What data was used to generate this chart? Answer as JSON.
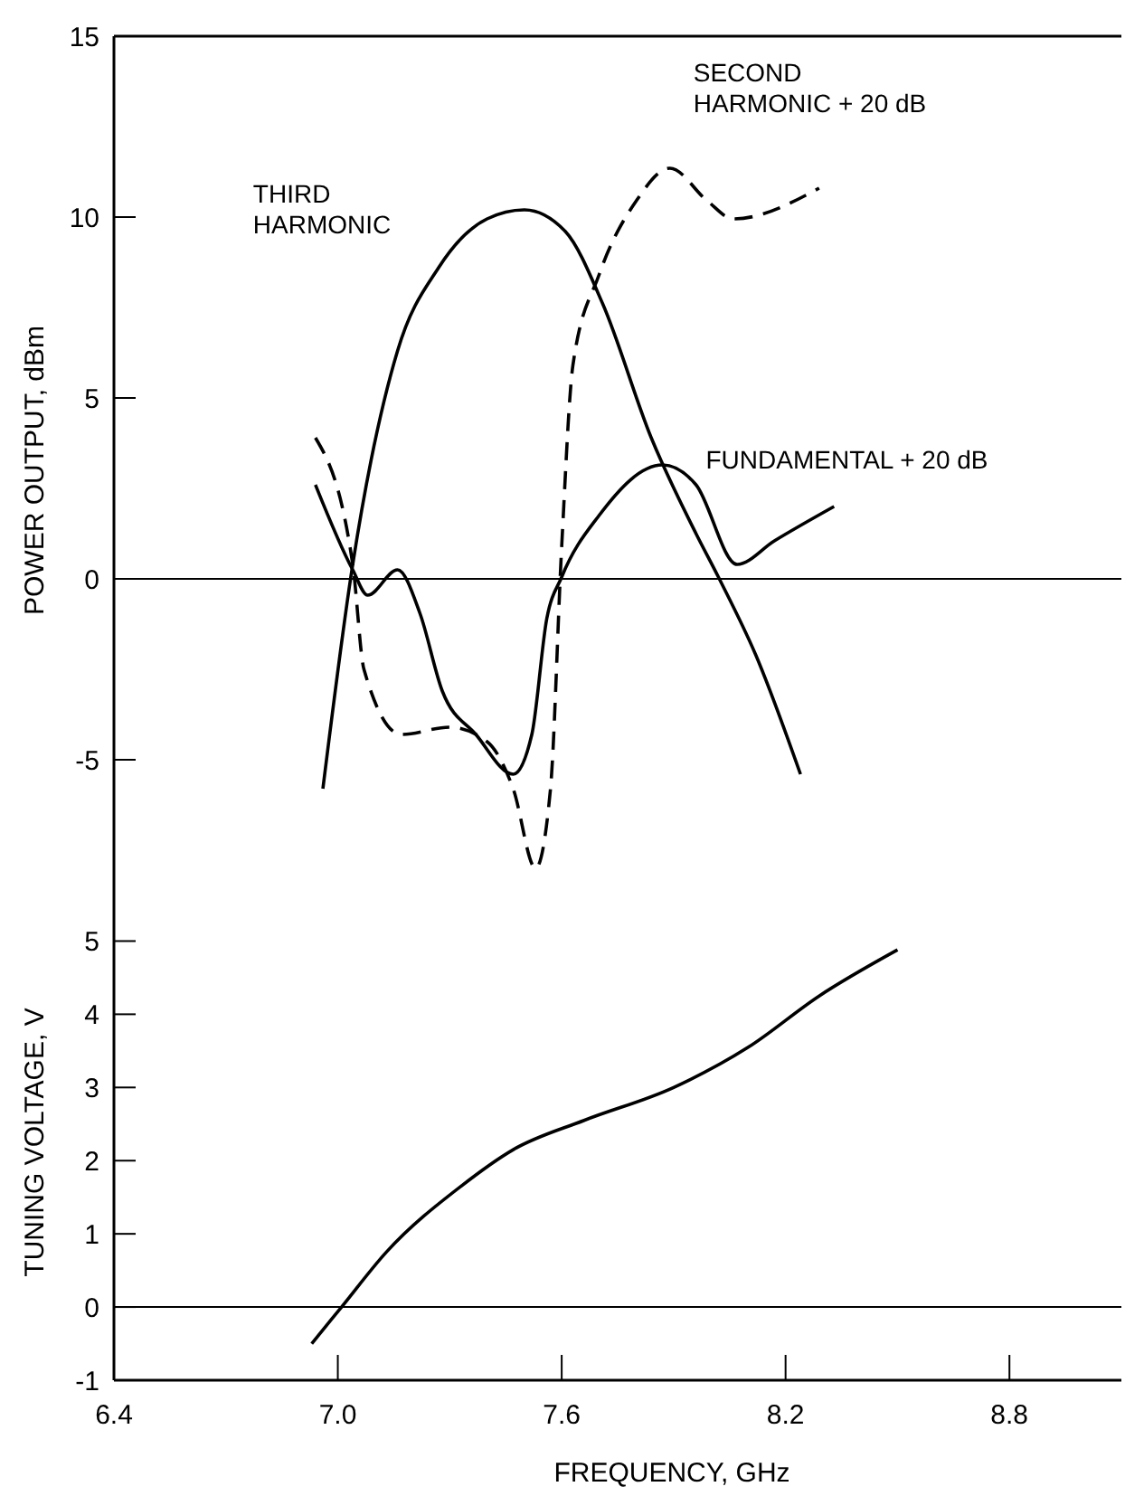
{
  "chart_data": [
    {
      "type": "line",
      "ylabel": "POWER OUTPUT, dBm",
      "xlim": [
        6.4,
        9.1
      ],
      "ylim": [
        -9,
        15
      ],
      "yticks": [
        -5,
        0,
        5,
        10,
        15
      ],
      "tick_labels": "y",
      "ref_lines": [
        {
          "axis": "y",
          "value": 0
        }
      ],
      "series": [
        {
          "name": "THIRD\nHARMONIC",
          "color": "#000000",
          "line_style": "solid",
          "x": [
            6.96,
            7.04,
            7.16,
            7.27,
            7.4,
            7.5,
            7.61,
            7.71,
            7.84,
            7.96,
            8.02,
            8.12,
            8.24
          ],
          "values": [
            -5.8,
            0.4,
            6.3,
            8.6,
            9.95,
            10.2,
            9.6,
            7.6,
            3.9,
            1.25,
            0.05,
            -2.1,
            -5.4
          ]
        },
        {
          "name": "SECOND\nHARMONIC + 20 dB",
          "color": "#000000",
          "line_style": "dashed",
          "x": [
            6.94,
            7.04,
            7.07,
            7.17,
            7.3,
            7.4,
            7.47,
            7.53,
            7.57,
            7.6,
            7.63,
            7.7,
            7.8,
            7.89,
            7.99,
            8.06,
            8.29
          ],
          "values": [
            3.9,
            0.4,
            -2.5,
            -4.3,
            -4.1,
            -4.5,
            -5.8,
            -8,
            -5.8,
            0.9,
            5.9,
            8.4,
            10.45,
            11.35,
            10.45,
            9.95,
            10.8
          ]
        },
        {
          "name": "FUNDAMENTAL + 20 dB",
          "color": "#000000",
          "line_style": "solid",
          "x": [
            6.94,
            7.04,
            7.08,
            7.16,
            7.22,
            7.28,
            7.37,
            7.47,
            7.52,
            7.56,
            7.6,
            7.7,
            7.87,
            7.96,
            8.07,
            8.17,
            8.33
          ],
          "values": [
            2.6,
            0.25,
            -0.45,
            0.25,
            -0.95,
            -3.1,
            -4.3,
            -5.4,
            -4.3,
            -1.1,
            0.05,
            1.75,
            3.15,
            2.6,
            0.4,
            1.05,
            2
          ]
        }
      ]
    },
    {
      "type": "line",
      "xlabel": "FREQUENCY, GHz",
      "ylabel": "TUNING VOLTAGE, V",
      "xlim": [
        6.4,
        9.1
      ],
      "xticks": [
        6.4,
        {
          "value": 7,
          "label": "7.0"
        },
        7.6,
        8.2,
        8.8
      ],
      "ylim": [
        -1,
        5.5
      ],
      "yticks": [
        -1,
        0,
        1,
        2,
        3,
        4,
        5
      ],
      "ref_lines": [
        {
          "axis": "y",
          "value": 0
        }
      ],
      "series": [
        {
          "color": "#000000",
          "line_style": "solid",
          "x": [
            6.93,
            7.01,
            7.13,
            7.33,
            7.47,
            7.66,
            7.9,
            8.1,
            8.29,
            8.5
          ],
          "values": [
            -0.5,
            0,
            0.75,
            1.65,
            2.15,
            2.55,
            3,
            3.55,
            4.25,
            4.88
          ]
        }
      ]
    }
  ]
}
